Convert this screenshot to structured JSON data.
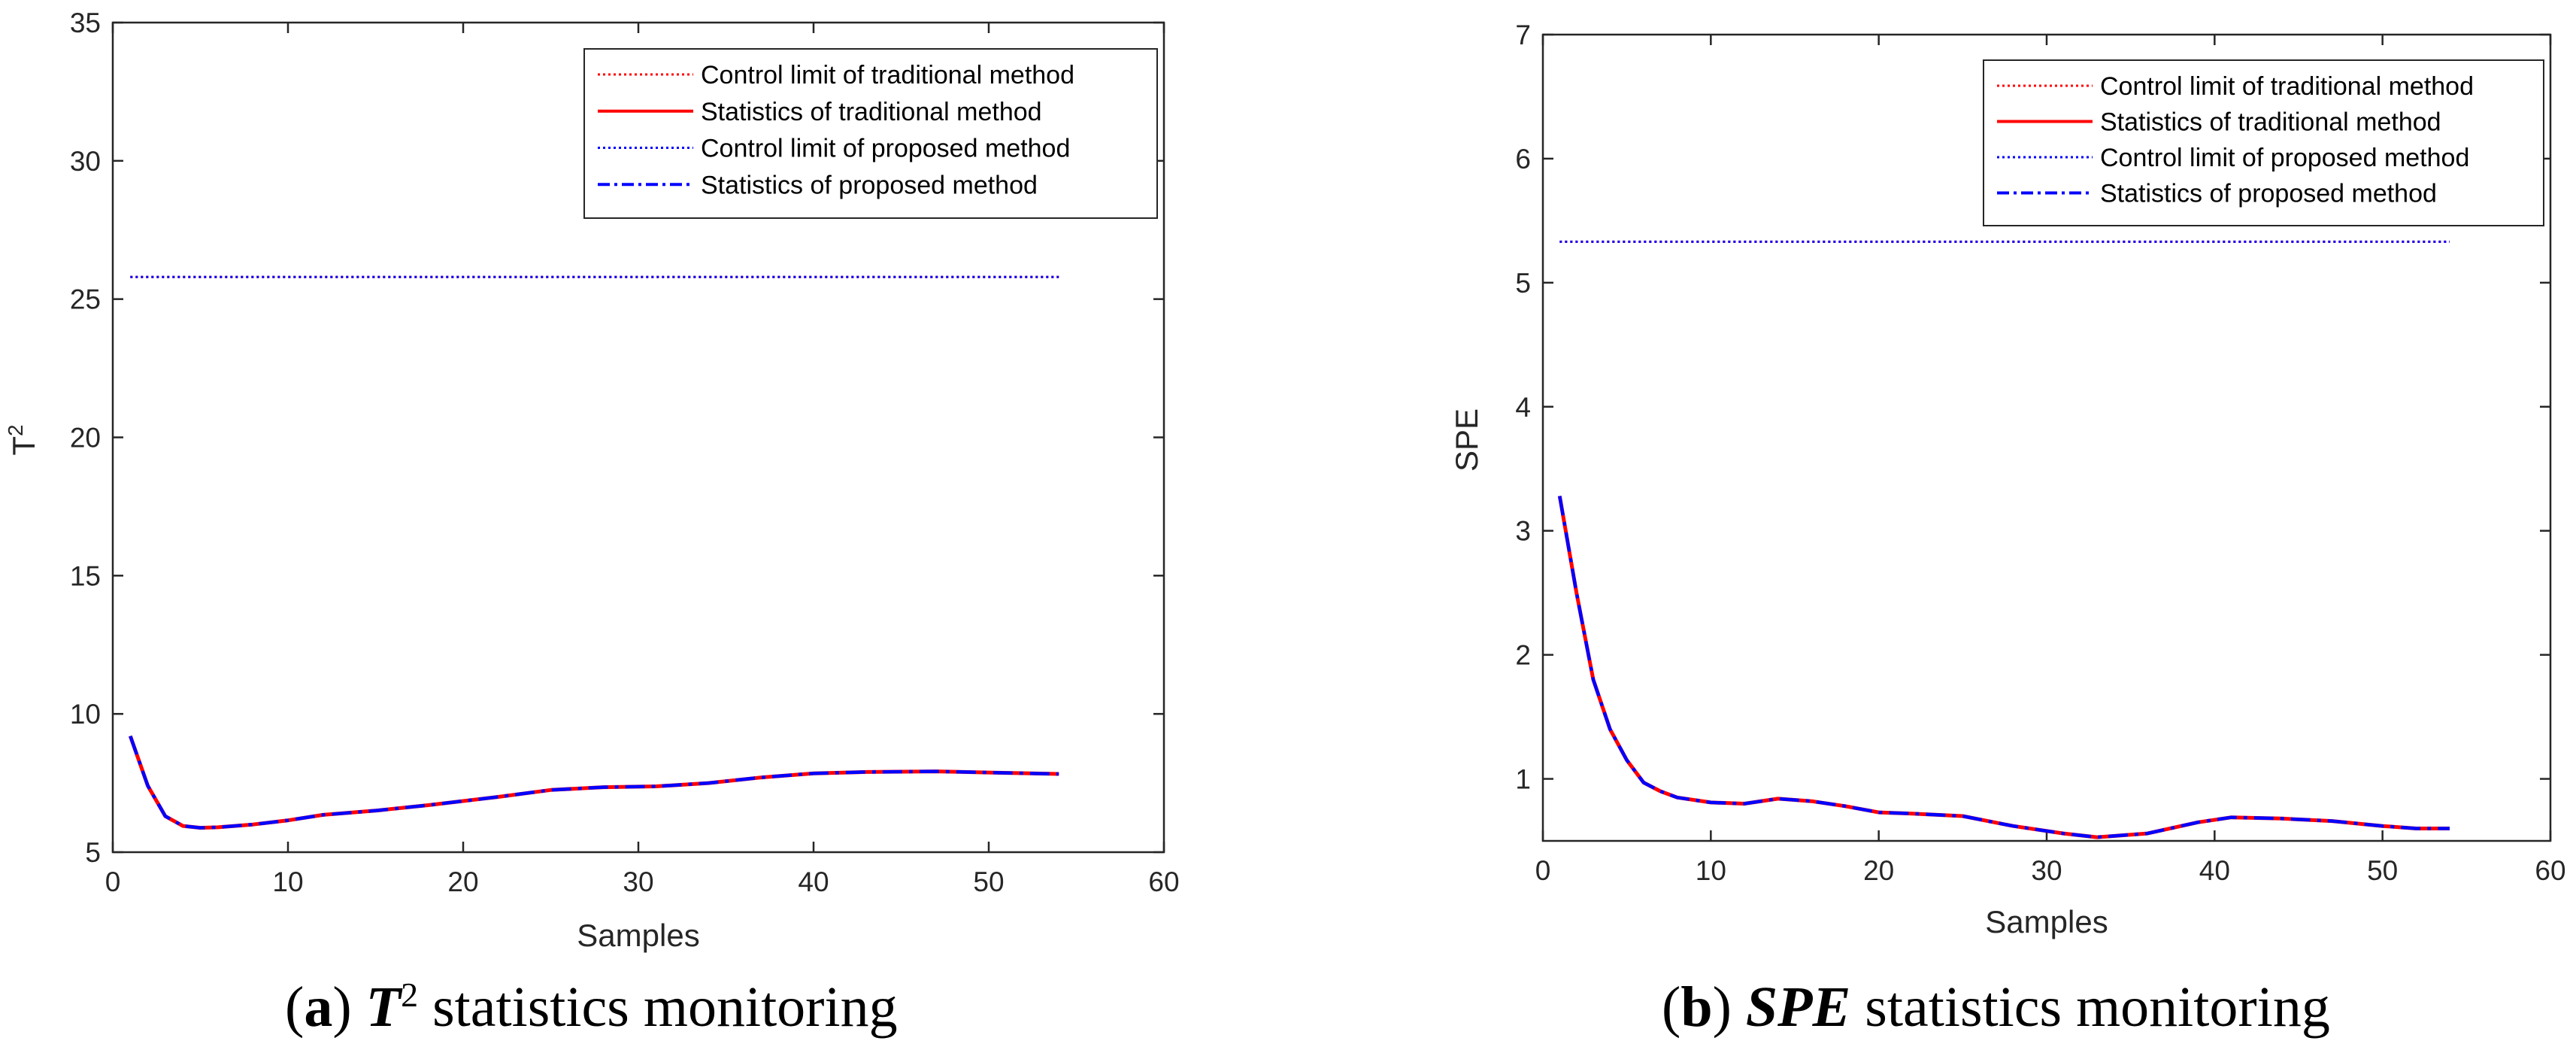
{
  "colors": {
    "traditional": "#ff0000",
    "proposed": "#0000ff",
    "axis": "#262626"
  },
  "chart_data": [
    {
      "type": "line",
      "ylabel_base": "T",
      "ylabel_sup": "2",
      "xlabel": "Samples",
      "xlim": [
        0,
        60
      ],
      "ylim": [
        5,
        35
      ],
      "xticks": [
        "0",
        "10",
        "20",
        "30",
        "40",
        "50",
        "60"
      ],
      "yticks": [
        "5",
        "10",
        "15",
        "20",
        "25",
        "30",
        "35"
      ],
      "caption": {
        "letter": "a",
        "symbol": "T",
        "sup": "2",
        "text": " statistics monitoring"
      },
      "legend": [
        "Control limit of traditional method",
        "Statistics of traditional method",
        "Control limit of proposed method",
        "Statistics of proposed method"
      ],
      "control_limit": 25.8,
      "x": [
        1,
        2,
        3,
        4,
        5,
        6,
        8,
        10,
        12,
        15,
        18,
        20,
        22,
        25,
        28,
        31,
        34,
        37,
        40,
        43,
        47,
        50,
        54
      ],
      "series": [
        {
          "name": "Statistics of traditional method",
          "values": [
            9.2,
            7.4,
            6.3,
            5.95,
            5.88,
            5.9,
            6.0,
            6.15,
            6.35,
            6.5,
            6.7,
            6.85,
            7.0,
            7.25,
            7.35,
            7.38,
            7.5,
            7.7,
            7.85,
            7.9,
            7.92,
            7.88,
            7.83
          ]
        },
        {
          "name": "Statistics of proposed method",
          "values": [
            9.2,
            7.4,
            6.3,
            5.95,
            5.88,
            5.9,
            6.0,
            6.15,
            6.35,
            6.5,
            6.7,
            6.85,
            7.0,
            7.25,
            7.35,
            7.38,
            7.5,
            7.7,
            7.85,
            7.9,
            7.92,
            7.88,
            7.83
          ]
        }
      ]
    },
    {
      "type": "line",
      "ylabel_base": "SPE",
      "ylabel_sup": "",
      "xlabel": "Samples",
      "xlim": [
        0,
        60
      ],
      "ylim": [
        0.5,
        7
      ],
      "xticks": [
        "0",
        "10",
        "20",
        "30",
        "40",
        "50",
        "60"
      ],
      "yticks": [
        "1",
        "2",
        "3",
        "4",
        "5",
        "6",
        "7"
      ],
      "caption": {
        "letter": "b",
        "symbol": "SPE",
        "sup": "",
        "text": " statistics monitoring"
      },
      "legend": [
        "Control limit of traditional method",
        "Statistics of traditional method",
        "Control limit of proposed method",
        "Statistics of proposed method"
      ],
      "control_limit": 5.33,
      "x": [
        1,
        2,
        3,
        4,
        5,
        6,
        7,
        8,
        10,
        12,
        14,
        16,
        18,
        20,
        22,
        25,
        28,
        31,
        33,
        36,
        39,
        41,
        44,
        47,
        50,
        52,
        54
      ],
      "series": [
        {
          "name": "Statistics of traditional method",
          "values": [
            3.28,
            2.5,
            1.8,
            1.4,
            1.15,
            0.97,
            0.9,
            0.85,
            0.81,
            0.8,
            0.84,
            0.82,
            0.78,
            0.73,
            0.72,
            0.7,
            0.62,
            0.56,
            0.53,
            0.56,
            0.65,
            0.69,
            0.68,
            0.66,
            0.62,
            0.6,
            0.6
          ]
        },
        {
          "name": "Statistics of proposed method",
          "values": [
            3.28,
            2.5,
            1.8,
            1.4,
            1.15,
            0.97,
            0.9,
            0.85,
            0.81,
            0.8,
            0.84,
            0.82,
            0.78,
            0.73,
            0.72,
            0.7,
            0.62,
            0.56,
            0.53,
            0.56,
            0.65,
            0.69,
            0.68,
            0.66,
            0.62,
            0.6,
            0.6
          ]
        }
      ]
    }
  ]
}
